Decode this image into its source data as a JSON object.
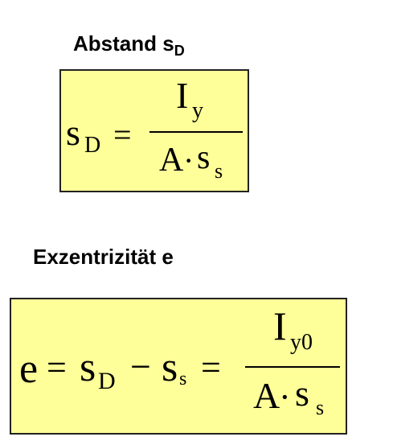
{
  "section1": {
    "heading": {
      "text": "Abstand s",
      "sub": "D"
    },
    "formula": {
      "lhs_symbol": "s",
      "lhs_sub": "D",
      "equals": "=",
      "numerator_symbol": "I",
      "numerator_sub": "y",
      "denominator_symbol1": "A",
      "denominator_operator": "·",
      "denominator_symbol2": "s",
      "denominator_sub": "s"
    }
  },
  "section2": {
    "heading": {
      "text": "Exzentrizität e"
    },
    "formula": {
      "lhs_symbol": "e",
      "equals1": "=",
      "term1_symbol": "s",
      "term1_sub": "D",
      "minus": "−",
      "term2_symbol": "s",
      "term2_sub": "s",
      "equals2": "=",
      "numerator_symbol": "I",
      "numerator_sub": "y0",
      "denominator_symbol1": "A",
      "denominator_operator": "·",
      "denominator_symbol2": "s",
      "denominator_sub": "s"
    }
  },
  "colors": {
    "box_fill": "#ffff99",
    "box_border": "#222222",
    "text": "#000000"
  }
}
